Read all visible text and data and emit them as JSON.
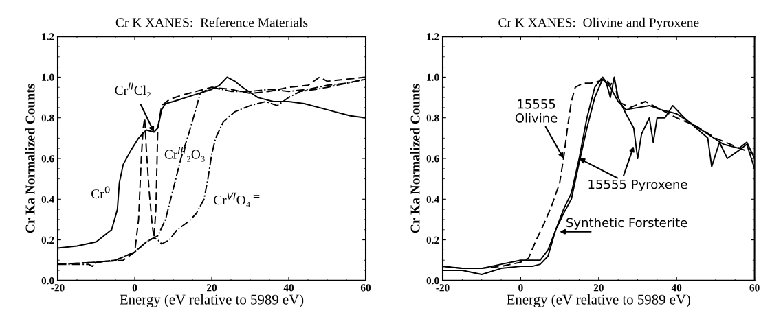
{
  "chart_data": [
    {
      "type": "line",
      "title": "Cr K XANES:  Reference Materials",
      "xlabel": "Energy (eV relative to 5989 eV)",
      "ylabel": "Cr Ka Normalized Counts",
      "xlim": [
        -20,
        60
      ],
      "ylim": [
        0,
        1.2
      ],
      "xticks": [
        -20,
        0,
        20,
        40,
        60
      ],
      "yticks": [
        {
          "value": 0,
          "label": "0.0"
        },
        {
          "value": 0.2,
          "label": "0.2"
        },
        {
          "value": 0.4,
          "label": "0.4"
        },
        {
          "value": 0.6,
          "label": "0.6"
        },
        {
          "value": 0.8,
          "label": "0.8"
        },
        {
          "value": 1.0,
          "label": "1.0"
        },
        {
          "value": 1.2,
          "label": "1.2"
        }
      ],
      "grid": false,
      "series": [
        {
          "color": "#000000",
          "line_style": "solid",
          "x": [
            -20,
            -15,
            -10,
            -6,
            -4.5,
            -4,
            -3,
            -1,
            1,
            3,
            5,
            6,
            7,
            8,
            10,
            15,
            20,
            22,
            24,
            26,
            28,
            32,
            36,
            40,
            44,
            48,
            52,
            56,
            60
          ],
          "values": [
            0.16,
            0.17,
            0.19,
            0.25,
            0.35,
            0.48,
            0.57,
            0.64,
            0.7,
            0.74,
            0.73,
            0.75,
            0.84,
            0.87,
            0.88,
            0.91,
            0.94,
            0.96,
            1.0,
            0.98,
            0.95,
            0.9,
            0.88,
            0.88,
            0.87,
            0.85,
            0.83,
            0.81,
            0.8
          ]
        },
        {
          "color": "#000000",
          "line_style": "dashed",
          "x": [
            -20,
            -10,
            -3,
            0,
            1,
            1.7,
            2.2,
            2.6,
            3,
            3.7,
            4.5,
            5,
            5.5,
            6,
            7,
            9,
            12,
            16,
            20,
            25,
            30,
            35,
            40,
            45,
            48,
            50,
            55,
            60
          ],
          "values": [
            0.08,
            0.09,
            0.1,
            0.14,
            0.3,
            0.6,
            0.75,
            0.8,
            0.65,
            0.45,
            0.28,
            0.21,
            0.35,
            0.75,
            0.86,
            0.89,
            0.91,
            0.93,
            0.95,
            0.94,
            0.92,
            0.93,
            0.95,
            0.96,
            1.0,
            0.98,
            0.99,
            1.0
          ]
        },
        {
          "color": "#000000",
          "line_style": "dashdot",
          "x": [
            -20,
            -10,
            -5,
            0,
            3,
            5,
            6,
            8,
            10,
            12,
            14,
            16,
            17,
            20,
            25,
            30,
            35,
            40,
            45,
            50,
            55,
            60
          ],
          "values": [
            0.08,
            0.09,
            0.1,
            0.14,
            0.19,
            0.21,
            0.22,
            0.3,
            0.45,
            0.6,
            0.72,
            0.85,
            0.92,
            0.95,
            0.93,
            0.93,
            0.94,
            0.93,
            0.94,
            0.96,
            0.97,
            0.99
          ]
        },
        {
          "color": "#000000",
          "line_style": "dashdot",
          "x": [
            -20,
            -12,
            -11,
            -10,
            -5,
            0,
            3,
            5,
            6,
            7,
            9,
            11,
            14,
            16,
            18,
            19,
            20,
            21,
            23,
            26,
            30,
            34,
            37,
            40,
            43,
            47,
            50,
            55,
            60
          ],
          "values": [
            0.08,
            0.08,
            0.07,
            0.09,
            0.1,
            0.14,
            0.19,
            0.21,
            0.2,
            0.18,
            0.2,
            0.25,
            0.29,
            0.33,
            0.4,
            0.5,
            0.62,
            0.7,
            0.78,
            0.83,
            0.86,
            0.88,
            0.86,
            0.9,
            0.93,
            0.94,
            0.95,
            0.97,
            0.99
          ]
        }
      ],
      "annotations": [
        "Cr$^{0}$",
        {
          "text": "Cr$^{II}$Cl₂",
          "x": 5,
          "y": 0.73
        },
        "Cr$^{III}$₂O₃",
        "Cr$^{VI}$O₄$^{=}$"
      ]
    },
    {
      "type": "line",
      "title": "Cr K XANES:  Olivine and Pyroxene",
      "xlabel": "Energy (eV relative to 5989 eV)",
      "ylabel": "Cr Ka Normalized Counts",
      "xlim": [
        -20,
        60
      ],
      "ylim": [
        0,
        1.2
      ],
      "xticks": [
        -20,
        0,
        20,
        40,
        60
      ],
      "yticks": [
        {
          "value": 0,
          "label": "0.0"
        },
        {
          "value": 0.2,
          "label": "0.2"
        },
        {
          "value": 0.4,
          "label": "0.4"
        },
        {
          "value": 0.6,
          "label": "0.6"
        },
        {
          "value": 0.8,
          "label": "0.8"
        },
        {
          "value": 1.0,
          "label": "1.0"
        },
        {
          "value": 1.2,
          "label": "1.2"
        }
      ],
      "grid": false,
      "series": [
        {
          "color": "#000000",
          "line_style": "dashed",
          "x": [
            -20,
            -15,
            -10,
            -5,
            0,
            2,
            4,
            6,
            8,
            10,
            11,
            12,
            13,
            14,
            16,
            18,
            20,
            22,
            23,
            24,
            25,
            28,
            32,
            36,
            40,
            45,
            50,
            55,
            60
          ],
          "values": [
            0.07,
            0.06,
            0.06,
            0.07,
            0.09,
            0.11,
            0.2,
            0.28,
            0.37,
            0.48,
            0.6,
            0.75,
            0.88,
            0.95,
            0.97,
            0.97,
            0.98,
            0.99,
            0.96,
            0.99,
            0.88,
            0.85,
            0.88,
            0.84,
            0.8,
            0.76,
            0.7,
            0.66,
            0.62
          ]
        },
        {
          "color": "#000000",
          "line_style": "solid",
          "x": [
            -20,
            -15,
            -10,
            -5,
            0,
            3,
            5,
            7,
            9,
            11,
            13,
            15,
            17,
            19,
            21,
            22,
            23,
            24,
            25,
            27,
            29,
            30,
            31,
            33,
            34,
            35,
            37,
            39,
            42,
            45,
            48,
            49,
            51,
            53,
            56,
            58,
            60
          ],
          "values": [
            0.05,
            0.05,
            0.03,
            0.06,
            0.07,
            0.07,
            0.08,
            0.12,
            0.25,
            0.33,
            0.4,
            0.58,
            0.75,
            0.9,
            0.99,
            0.97,
            0.9,
            1.0,
            0.9,
            0.82,
            0.75,
            0.6,
            0.72,
            0.8,
            0.68,
            0.8,
            0.8,
            0.86,
            0.8,
            0.75,
            0.7,
            0.56,
            0.68,
            0.6,
            0.64,
            0.67,
            0.55
          ]
        },
        {
          "color": "#000000",
          "line_style": "solid",
          "x": [
            -20,
            -15,
            -10,
            -5,
            0,
            3,
            5,
            7,
            9,
            11,
            13,
            15,
            17,
            19,
            21,
            23,
            25,
            27,
            30,
            33,
            36,
            40,
            44,
            48,
            52,
            56,
            58,
            60
          ],
          "values": [
            0.07,
            0.06,
            0.06,
            0.08,
            0.1,
            0.1,
            0.1,
            0.15,
            0.25,
            0.35,
            0.43,
            0.6,
            0.8,
            0.95,
            1.0,
            0.95,
            0.88,
            0.84,
            0.85,
            0.86,
            0.84,
            0.82,
            0.77,
            0.72,
            0.67,
            0.65,
            0.68,
            0.6
          ]
        }
      ],
      "annotations": [
        {
          "text": "15555\nOlivine",
          "x": 11,
          "y": 0.6
        },
        {
          "text": "15555 Pyroxene",
          "x": 15,
          "y": 0.6
        },
        "Synthetic Forsterite"
      ]
    }
  ]
}
